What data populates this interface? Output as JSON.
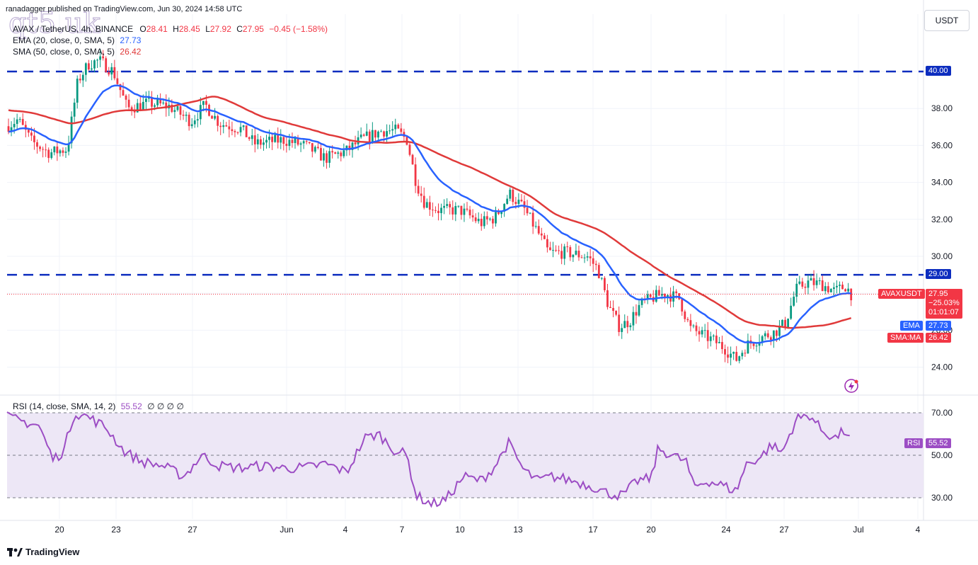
{
  "header": {
    "published": "ranadagger published on TradingView.com, Jun 30, 2024 14:58 UTC",
    "symbol": "AVAX / TetherUS, 4h, BINANCE",
    "open_label": "O",
    "open": "28.41",
    "high_label": "H",
    "high": "28.45",
    "low_label": "L",
    "low": "27.92",
    "close_label": "C",
    "close": "27.95",
    "change": "−0.45 (−1.58%)",
    "ema_label": "EMA (20, close, 0, SMA, 5)",
    "ema_value": "27.73",
    "sma_label": "SMA (50, close, 0, SMA, 5)",
    "sma_value": "26.42",
    "currency": "USDT"
  },
  "watermark": "qt5.uk",
  "price_tags": {
    "symbol_tag": "AVAXUSDT",
    "last_price": "27.95",
    "last_change": "−25.03%",
    "countdown": "01:01:07",
    "ema_tag": "EMA",
    "ema_value": "27.73",
    "sma_tag": "SMA:MA",
    "sma_value": "26.42",
    "level_high": "40.00",
    "level_low": "29.00"
  },
  "rsi": {
    "label": "RSI (14, close, SMA, 14, 2)",
    "value": "55.52",
    "nulls": "∅ ∅ ∅ ∅",
    "tag": "RSI",
    "tag_value": "55.52"
  },
  "footer": {
    "brand": "TradingView"
  },
  "colors": {
    "up": "#089981",
    "down": "#f23645",
    "ema": "#2962ff",
    "sma": "#e03a3a",
    "level": "#0d2dbf",
    "rsi": "#9c4dc4",
    "rsi_band": "#ede7f6"
  },
  "chart_data": {
    "type": "candlestick",
    "price_axis": {
      "ticks": [
        24,
        26,
        28,
        30,
        32,
        34,
        36,
        38,
        40
      ],
      "tick_labels": [
        "24.00",
        "26.00",
        "28.00",
        "30.00",
        "32.00",
        "34.00",
        "36.00",
        "38.00",
        "40.00"
      ],
      "range": [
        22.5,
        41.5
      ]
    },
    "time_axis": {
      "labels": [
        "20",
        "23",
        "27",
        "Jun",
        "4",
        "7",
        "10",
        "13",
        "17",
        "20",
        "24",
        "27",
        "Jul",
        "4"
      ]
    },
    "horizontal_levels": [
      40.0,
      29.0
    ],
    "last_close": 27.95,
    "ema20_last": 27.73,
    "sma50_last": 26.42,
    "price_path_keypoints": [
      [
        0,
        36.8
      ],
      [
        25,
        37.4
      ],
      [
        45,
        36.2
      ],
      [
        70,
        35.6
      ],
      [
        95,
        35.8
      ],
      [
        110,
        39.5
      ],
      [
        125,
        40.4
      ],
      [
        140,
        40.6
      ],
      [
        160,
        40.0
      ],
      [
        180,
        38.0
      ],
      [
        210,
        38.3
      ],
      [
        240,
        38.1
      ],
      [
        270,
        37.3
      ],
      [
        290,
        38.2
      ],
      [
        310,
        37.2
      ],
      [
        340,
        36.9
      ],
      [
        360,
        36.1
      ],
      [
        400,
        36.3
      ],
      [
        430,
        36.0
      ],
      [
        460,
        35.3
      ],
      [
        490,
        35.7
      ],
      [
        510,
        36.3
      ],
      [
        540,
        36.8
      ],
      [
        560,
        36.8
      ],
      [
        575,
        36.3
      ],
      [
        588,
        34.0
      ],
      [
        600,
        32.9
      ],
      [
        620,
        32.5
      ],
      [
        650,
        32.5
      ],
      [
        680,
        31.8
      ],
      [
        700,
        32.1
      ],
      [
        720,
        33.4
      ],
      [
        740,
        32.6
      ],
      [
        760,
        31.3
      ],
      [
        775,
        30.2
      ],
      [
        800,
        30.2
      ],
      [
        830,
        30.0
      ],
      [
        845,
        29.3
      ],
      [
        860,
        27.3
      ],
      [
        875,
        26.2
      ],
      [
        890,
        26.5
      ],
      [
        905,
        27.4
      ],
      [
        925,
        27.8
      ],
      [
        940,
        28.0
      ],
      [
        960,
        27.7
      ],
      [
        975,
        26.1
      ],
      [
        990,
        25.8
      ],
      [
        1010,
        25.4
      ],
      [
        1025,
        25.0
      ],
      [
        1040,
        24.4
      ],
      [
        1055,
        25.2
      ],
      [
        1075,
        25.6
      ],
      [
        1095,
        25.9
      ],
      [
        1110,
        26.4
      ],
      [
        1125,
        28.2
      ],
      [
        1140,
        28.6
      ],
      [
        1160,
        28.5
      ],
      [
        1180,
        28.1
      ],
      [
        1195,
        28.4
      ],
      [
        1203,
        27.95
      ]
    ],
    "rsi_axis": {
      "ticks": [
        30,
        50,
        70
      ],
      "tick_labels": [
        "30.00",
        "50.00",
        "70.00"
      ],
      "range": [
        20,
        80
      ]
    },
    "rsi_path_keypoints": [
      [
        10,
        68
      ],
      [
        30,
        66
      ],
      [
        55,
        64
      ],
      [
        75,
        48
      ],
      [
        90,
        52
      ],
      [
        105,
        70
      ],
      [
        125,
        68
      ],
      [
        150,
        63
      ],
      [
        175,
        52
      ],
      [
        200,
        47
      ],
      [
        230,
        45
      ],
      [
        260,
        40
      ],
      [
        285,
        50
      ],
      [
        310,
        45
      ],
      [
        340,
        44
      ],
      [
        370,
        45
      ],
      [
        400,
        44
      ],
      [
        430,
        44
      ],
      [
        460,
        46
      ],
      [
        490,
        42
      ],
      [
        515,
        58
      ],
      [
        535,
        60
      ],
      [
        555,
        53
      ],
      [
        575,
        50
      ],
      [
        588,
        31
      ],
      [
        610,
        27
      ],
      [
        630,
        29
      ],
      [
        655,
        40
      ],
      [
        680,
        38
      ],
      [
        700,
        45
      ],
      [
        718,
        56
      ],
      [
        740,
        43
      ],
      [
        760,
        38
      ],
      [
        780,
        40
      ],
      [
        810,
        38
      ],
      [
        840,
        35
      ],
      [
        860,
        32
      ],
      [
        880,
        31
      ],
      [
        900,
        38
      ],
      [
        920,
        39
      ],
      [
        930,
        53
      ],
      [
        950,
        50
      ],
      [
        970,
        47
      ],
      [
        980,
        35
      ],
      [
        1000,
        38
      ],
      [
        1020,
        36
      ],
      [
        1040,
        33
      ],
      [
        1055,
        46
      ],
      [
        1075,
        49
      ],
      [
        1090,
        55
      ],
      [
        1105,
        51
      ],
      [
        1125,
        67
      ],
      [
        1145,
        69
      ],
      [
        1160,
        62
      ],
      [
        1180,
        58
      ],
      [
        1195,
        62
      ],
      [
        1203,
        55.5
      ]
    ]
  }
}
